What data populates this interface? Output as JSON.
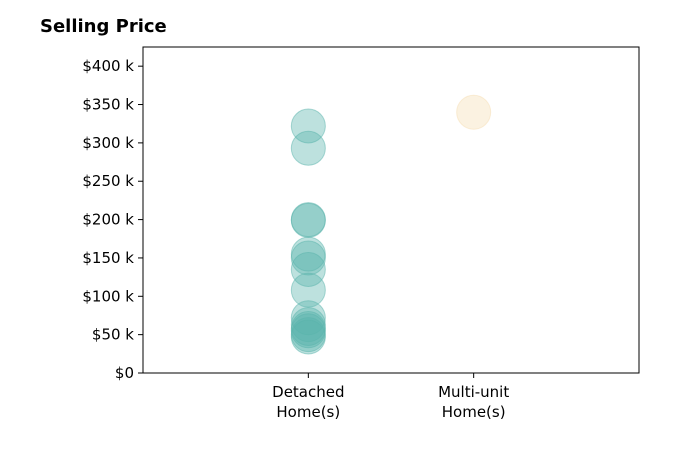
{
  "chart_data": {
    "type": "scatter",
    "title": "Selling Price",
    "xlabel": "",
    "ylabel": "",
    "categories": [
      "Detached\nHome(s)",
      "Multi-unit\nHome(s)"
    ],
    "ylim": [
      0,
      425000
    ],
    "yticks": [
      0,
      50000,
      100000,
      150000,
      200000,
      250000,
      300000,
      350000,
      400000
    ],
    "ytick_labels": [
      "$0",
      "$50 k",
      "$100 k",
      "$150 k",
      "$200 k",
      "$250 k",
      "$300 k",
      "$350 k",
      "$400 k"
    ],
    "grid": false,
    "series": [
      {
        "category": "Detached\nHome(s)",
        "color": "#5ab4ac",
        "values": [
          322000,
          293000,
          200000,
          199000,
          155000,
          150000,
          135000,
          108000,
          72000,
          63000,
          58000,
          55000,
          50000,
          47000
        ]
      },
      {
        "category": "Multi-unit\nHome(s)",
        "color": "#f5deb3",
        "values": [
          340000
        ]
      }
    ]
  }
}
